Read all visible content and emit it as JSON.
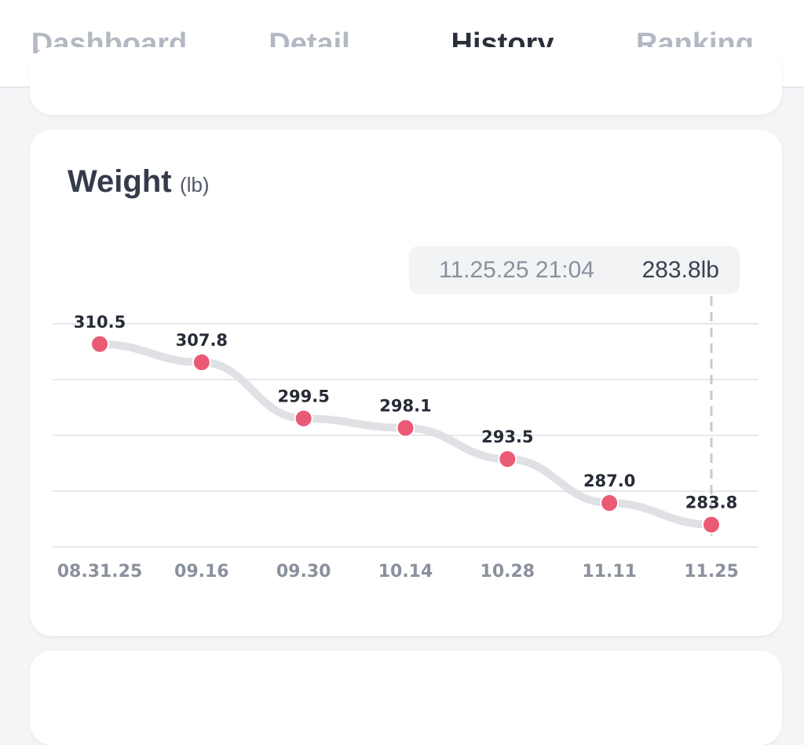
{
  "tabs": [
    {
      "label": "Dashboard",
      "active": false
    },
    {
      "label": "Detail",
      "active": false
    },
    {
      "label": "History",
      "active": true
    },
    {
      "label": "Ranking",
      "active": false
    }
  ],
  "weight_card": {
    "title": "Weight",
    "unit": "(lb)",
    "tooltip": {
      "datetime": "11.25.25 21:04",
      "value": "283.8lb"
    }
  },
  "colors": {
    "point": "#ea5a75",
    "line": "#dfe1e5",
    "grid": "#e6e8ec",
    "guide": "#c6cad1"
  },
  "chart_data": {
    "type": "line",
    "categories": [
      "08.31.25",
      "09.16",
      "09.30",
      "10.14",
      "10.28",
      "11.11",
      "11.25"
    ],
    "series": [
      {
        "values": [
          310.5,
          307.8,
          299.5,
          298.1,
          293.5,
          287.0,
          283.8
        ],
        "labels": [
          "310.5",
          "307.8",
          "299.5",
          "298.1",
          "293.5",
          "287.0",
          "283.8"
        ]
      }
    ],
    "ylim": [
      280.5,
      313.5
    ],
    "grid": true,
    "selected_index": 6
  }
}
